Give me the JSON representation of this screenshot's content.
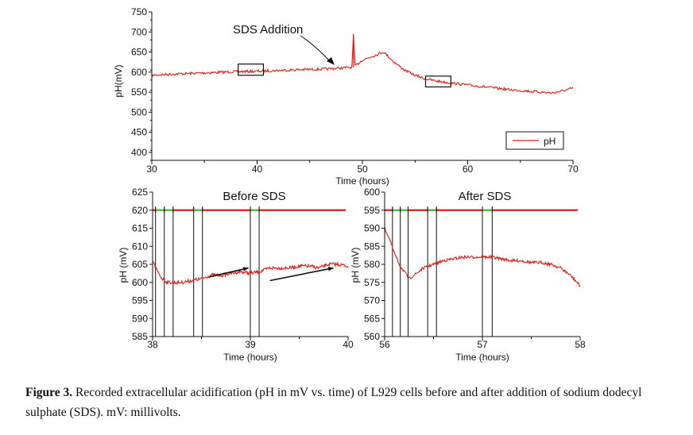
{
  "chart_data": [
    {
      "type": "line",
      "title": "",
      "xlabel": "Time (hours)",
      "ylabel": "pH(mV)",
      "xlim": [
        30,
        70
      ],
      "ylim": [
        380,
        750
      ],
      "xticks": [
        30,
        40,
        50,
        60,
        70
      ],
      "yticks": [
        400,
        450,
        500,
        550,
        600,
        650,
        700,
        750
      ],
      "legend": {
        "position": "bottom-right",
        "entries": [
          "pH"
        ]
      },
      "annotations": [
        {
          "text": "SDS Addition",
          "points_to": [
            48.5,
            610
          ]
        }
      ],
      "highlight_boxes": [
        {
          "x": [
            38.2,
            40.6
          ],
          "y": [
            592,
            620
          ]
        },
        {
          "x": [
            56.0,
            58.4
          ],
          "y": [
            563,
            590
          ]
        }
      ],
      "series": [
        {
          "name": "pH",
          "color": "#e0201b",
          "x": [
            30,
            32,
            34,
            36,
            38,
            40,
            42,
            44,
            46,
            48,
            49,
            49.15,
            49.3,
            50,
            51,
            52,
            52.5,
            53,
            54,
            55,
            56,
            57,
            58,
            60,
            62,
            64,
            66,
            68,
            69,
            70
          ],
          "y": [
            592,
            595,
            597,
            599,
            601,
            602,
            604,
            606,
            607,
            610,
            612,
            695,
            615,
            630,
            640,
            650,
            638,
            625,
            605,
            592,
            583,
            578,
            574,
            568,
            562,
            556,
            552,
            548,
            553,
            560
          ]
        }
      ]
    },
    {
      "type": "line",
      "title": "Before SDS",
      "xlabel": "Time (hours)",
      "ylabel": "pH (mV)",
      "xlim": [
        38,
        40
      ],
      "ylim": [
        585,
        625
      ],
      "xticks": [
        38,
        39,
        40
      ],
      "yticks": [
        585,
        590,
        595,
        600,
        605,
        610,
        615,
        620,
        625
      ],
      "marker_lines_x": [
        38.03,
        38.12,
        38.21,
        38.42,
        38.51,
        39.0,
        39.09
      ],
      "reference_level": 620,
      "trend_arrows": [
        {
          "from": [
            38.58,
            601.5
          ],
          "to": [
            38.98,
            604.0
          ]
        },
        {
          "from": [
            39.2,
            600.5
          ],
          "to": [
            39.85,
            604.0
          ]
        }
      ],
      "series": [
        {
          "name": "pH",
          "color": "#e0201b",
          "x": [
            38.0,
            38.05,
            38.1,
            38.15,
            38.2,
            38.3,
            38.4,
            38.5,
            38.6,
            38.7,
            38.8,
            38.9,
            39.0,
            39.1,
            39.2,
            39.3,
            39.4,
            39.5,
            39.6,
            39.7,
            39.8,
            39.9,
            40.0
          ],
          "y": [
            606,
            603,
            601,
            600,
            600,
            600,
            600.5,
            601,
            602,
            602,
            602.5,
            603,
            602.5,
            603,
            604,
            604,
            604,
            604.5,
            604.5,
            604,
            605,
            605,
            604.5
          ]
        }
      ]
    },
    {
      "type": "line",
      "title": "After SDS",
      "xlabel": "Time (hours)",
      "ylabel": "pH (mV)",
      "xlim": [
        56,
        58
      ],
      "ylim": [
        560,
        600
      ],
      "xticks": [
        56,
        57,
        58
      ],
      "yticks": [
        560,
        565,
        570,
        575,
        580,
        585,
        590,
        595,
        600
      ],
      "marker_lines_x": [
        56.08,
        56.16,
        56.24,
        56.44,
        56.53,
        57.0,
        57.1
      ],
      "reference_level": 595,
      "series": [
        {
          "name": "pH",
          "color": "#e0201b",
          "x": [
            56.0,
            56.05,
            56.1,
            56.15,
            56.2,
            56.25,
            56.3,
            56.4,
            56.5,
            56.6,
            56.7,
            56.8,
            56.9,
            57.0,
            57.1,
            57.2,
            57.3,
            57.4,
            57.5,
            57.6,
            57.7,
            57.8,
            57.9,
            58.0
          ],
          "y": [
            590,
            587,
            583,
            580,
            578,
            576,
            577,
            579,
            580,
            581,
            581.5,
            582,
            582,
            582,
            582,
            581.5,
            581,
            581,
            580.5,
            580.5,
            580,
            579,
            577,
            574
          ]
        }
      ]
    }
  ],
  "caption": {
    "label": "Figure 3.",
    "text": "Recorded extracellular acidification (pH in mV vs. time) of L929 cells before and after addition of sodium dodecyl sulphate (SDS). mV: millivolts."
  }
}
